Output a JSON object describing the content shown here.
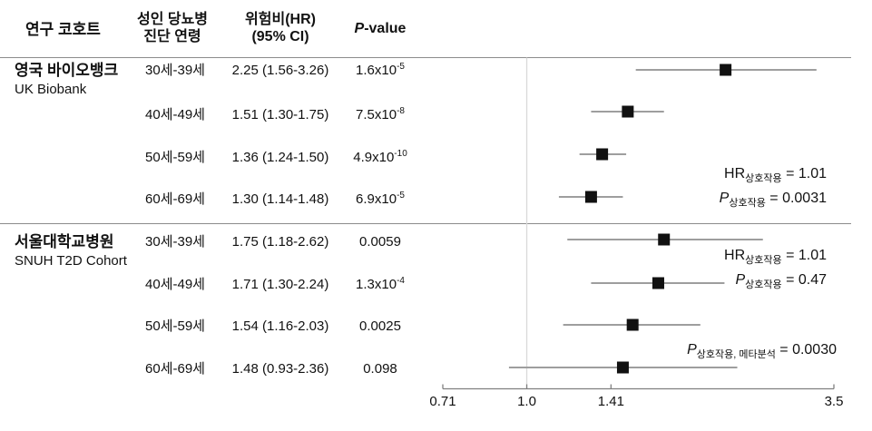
{
  "header": {
    "col_cohort": "연구 코호트",
    "col_age_line1": "성인 당뇨병",
    "col_age_line2": "진단 연령",
    "col_hr_line1": "위험비(HR)",
    "col_hr_line2": "(95% CI)",
    "col_p_italic": "P",
    "col_p_rest": "-value"
  },
  "cohorts": [
    {
      "name_ko": "영국 바이오뱅크",
      "name_en": "UK Biobank",
      "rows": [
        {
          "age": "30세-39세",
          "hr_ci": "2.25 (1.56-3.26)",
          "p_base": "1.6x10",
          "p_exp": "-5"
        },
        {
          "age": "40세-49세",
          "hr_ci": "1.51 (1.30-1.75)",
          "p_base": "7.5x10",
          "p_exp": "-8"
        },
        {
          "age": "50세-59세",
          "hr_ci": "1.36 (1.24-1.50)",
          "p_base": "4.9x10",
          "p_exp": "-10"
        },
        {
          "age": "60세-69세",
          "hr_ci": "1.30 (1.14-1.48)",
          "p_base": "6.9x10",
          "p_exp": "-5"
        }
      ]
    },
    {
      "name_ko": "서울대학교병원",
      "name_en": "SNUH T2D Cohort",
      "rows": [
        {
          "age": "30세-39세",
          "hr_ci": "1.75 (1.18-2.62)",
          "p_base": "0.0059",
          "p_exp": ""
        },
        {
          "age": "40세-49세",
          "hr_ci": "1.71 (1.30-2.24)",
          "p_base": "1.3x10",
          "p_exp": "-4"
        },
        {
          "age": "50세-59세",
          "hr_ci": "1.54 (1.16-2.03)",
          "p_base": "0.0025",
          "p_exp": ""
        },
        {
          "age": "60세-69세",
          "hr_ci": "1.48 (0.93-2.36)",
          "p_base": "0.098",
          "p_exp": ""
        }
      ]
    }
  ],
  "annotations": [
    {
      "hr_prefix": "HR",
      "hr_sub": "상호작용",
      "hr_eq": " = 1.01",
      "p_prefix": "P",
      "p_sub": "상호작용",
      "p_eq": " = 0.0031"
    },
    {
      "hr_prefix": "HR",
      "hr_sub": "상호작용",
      "hr_eq": " = 1.01",
      "p_prefix": "P",
      "p_sub": "상호작용",
      "p_eq": " = 0.47"
    }
  ],
  "meta_annotation": {
    "p_prefix": "P",
    "p_sub": "상호작용, 메타분석",
    "p_eq": " = 0.0030"
  },
  "colors": {
    "marker": "#111111",
    "ci_line": "#9e9e9e",
    "axis": "#808080",
    "reference_line": "#d9d9d9",
    "divider": "#8c8c8c",
    "text": "#111111"
  },
  "chart_data": {
    "type": "scatter",
    "subtype": "forest-plot",
    "xscale": "log",
    "xmin": 0.71,
    "xmax": 3.5,
    "xtick_values": [
      0.71,
      1.0,
      1.41,
      3.5
    ],
    "xtick_labels": [
      "0.71",
      "1.0",
      "1.41",
      "3.5"
    ],
    "reference_line": 1.0,
    "legend": "none",
    "series": [
      {
        "name": "UK Biobank",
        "points": [
          {
            "label": "30세-39세",
            "hr": 2.25,
            "ci_low": 1.56,
            "ci_high": 3.26
          },
          {
            "label": "40세-49세",
            "hr": 1.51,
            "ci_low": 1.3,
            "ci_high": 1.75
          },
          {
            "label": "50세-59세",
            "hr": 1.36,
            "ci_low": 1.24,
            "ci_high": 1.5
          },
          {
            "label": "60세-69세",
            "hr": 1.3,
            "ci_low": 1.14,
            "ci_high": 1.48
          }
        ]
      },
      {
        "name": "SNUH T2D Cohort",
        "points": [
          {
            "label": "30세-39세",
            "hr": 1.75,
            "ci_low": 1.18,
            "ci_high": 2.62
          },
          {
            "label": "40세-49세",
            "hr": 1.71,
            "ci_low": 1.3,
            "ci_high": 2.24
          },
          {
            "label": "50세-59세",
            "hr": 1.54,
            "ci_low": 1.16,
            "ci_high": 2.03
          },
          {
            "label": "60세-69세",
            "hr": 1.48,
            "ci_low": 0.93,
            "ci_high": 2.36
          }
        ]
      }
    ]
  }
}
